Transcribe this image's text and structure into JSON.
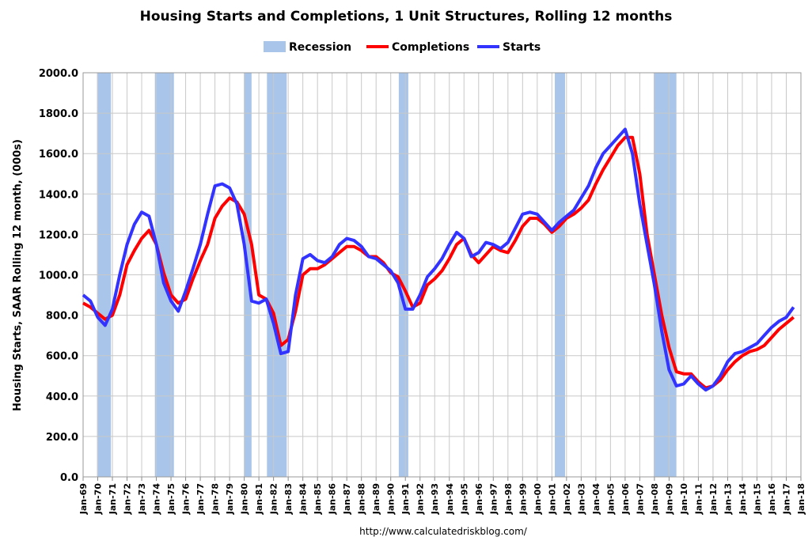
{
  "chart_data": {
    "type": "line",
    "title": "Housing Starts and Completions, 1 Unit Structures, Rolling 12 months",
    "ylabel": "Housing Starts, SAAR Rolling 12 month, (000s)",
    "source": "http://www.calculatedriskblog.com/",
    "ylim": [
      0,
      2000
    ],
    "yticks": [
      {
        "value": 0,
        "label": "0.0"
      },
      {
        "value": 200,
        "label": "200.0"
      },
      {
        "value": 400,
        "label": "400.0"
      },
      {
        "value": 600,
        "label": "600.0"
      },
      {
        "value": 800,
        "label": "800.0"
      },
      {
        "value": 1000,
        "label": "1000.0"
      },
      {
        "value": 1200,
        "label": "1200.0"
      },
      {
        "value": 1400,
        "label": "1400.0"
      },
      {
        "value": 1600,
        "label": "1600.0"
      },
      {
        "value": 1800,
        "label": "1800.0"
      },
      {
        "value": 2000,
        "label": "2000.0"
      }
    ],
    "xlim": [
      1969,
      2018
    ],
    "xticks": [
      {
        "value": 1969,
        "label": "Jan-69"
      },
      {
        "value": 1970,
        "label": "Jan-70"
      },
      {
        "value": 1971,
        "label": "Jan-71"
      },
      {
        "value": 1972,
        "label": "Jan-72"
      },
      {
        "value": 1973,
        "label": "Jan-73"
      },
      {
        "value": 1974,
        "label": "Jan-74"
      },
      {
        "value": 1975,
        "label": "Jan-75"
      },
      {
        "value": 1976,
        "label": "Jan-76"
      },
      {
        "value": 1977,
        "label": "Jan-77"
      },
      {
        "value": 1978,
        "label": "Jan-78"
      },
      {
        "value": 1979,
        "label": "Jan-79"
      },
      {
        "value": 1980,
        "label": "Jan-80"
      },
      {
        "value": 1981,
        "label": "Jan-81"
      },
      {
        "value": 1982,
        "label": "Jan-82"
      },
      {
        "value": 1983,
        "label": "Jan-83"
      },
      {
        "value": 1984,
        "label": "Jan-84"
      },
      {
        "value": 1985,
        "label": "Jan-85"
      },
      {
        "value": 1986,
        "label": "Jan-86"
      },
      {
        "value": 1987,
        "label": "Jan-87"
      },
      {
        "value": 1988,
        "label": "Jan-88"
      },
      {
        "value": 1989,
        "label": "Jan-89"
      },
      {
        "value": 1990,
        "label": "Jan-90"
      },
      {
        "value": 1991,
        "label": "Jan-91"
      },
      {
        "value": 1992,
        "label": "Jan-92"
      },
      {
        "value": 1993,
        "label": "Jan-93"
      },
      {
        "value": 1994,
        "label": "Jan-94"
      },
      {
        "value": 1995,
        "label": "Jan-95"
      },
      {
        "value": 1996,
        "label": "Jan-96"
      },
      {
        "value": 1997,
        "label": "Jan-97"
      },
      {
        "value": 1998,
        "label": "Jan-98"
      },
      {
        "value": 1999,
        "label": "Jan-99"
      },
      {
        "value": 2000,
        "label": "Jan-00"
      },
      {
        "value": 2001,
        "label": "Jan-01"
      },
      {
        "value": 2002,
        "label": "Jan-02"
      },
      {
        "value": 2003,
        "label": "Jan-03"
      },
      {
        "value": 2004,
        "label": "Jan-04"
      },
      {
        "value": 2005,
        "label": "Jan-05"
      },
      {
        "value": 2006,
        "label": "Jan-06"
      },
      {
        "value": 2007,
        "label": "Jan-07"
      },
      {
        "value": 2008,
        "label": "Jan-08"
      },
      {
        "value": 2009,
        "label": "Jan-09"
      },
      {
        "value": 2010,
        "label": "Jan-10"
      },
      {
        "value": 2011,
        "label": "Jan-11"
      },
      {
        "value": 2012,
        "label": "Jan-12"
      },
      {
        "value": 2013,
        "label": "Jan-13"
      },
      {
        "value": 2014,
        "label": "Jan-14"
      },
      {
        "value": 2015,
        "label": "Jan-15"
      },
      {
        "value": 2016,
        "label": "Jan-16"
      },
      {
        "value": 2017,
        "label": "Jan-17"
      },
      {
        "value": 2018,
        "label": "Jan-18"
      }
    ],
    "grid": true,
    "legend": "top",
    "recessions": {
      "name": "Recession",
      "color": "#a9c6ea",
      "periods": [
        [
          1969.95,
          1970.9
        ],
        [
          1973.9,
          1975.2
        ],
        [
          1980.0,
          1980.5
        ],
        [
          1981.55,
          1982.9
        ],
        [
          1990.55,
          1991.2
        ],
        [
          2001.2,
          2001.9
        ],
        [
          2007.95,
          2009.5
        ]
      ]
    },
    "x": [
      1969,
      1969.5,
      1970,
      1970.5,
      1971,
      1971.5,
      1972,
      1972.5,
      1973,
      1973.5,
      1974,
      1974.5,
      1975,
      1975.5,
      1976,
      1976.5,
      1977,
      1977.5,
      1978,
      1978.5,
      1979,
      1979.5,
      1980,
      1980.5,
      1981,
      1981.5,
      1982,
      1982.5,
      1983,
      1983.5,
      1984,
      1984.5,
      1985,
      1985.5,
      1986,
      1986.5,
      1987,
      1987.5,
      1988,
      1988.5,
      1989,
      1989.5,
      1990,
      1990.5,
      1991,
      1991.5,
      1992,
      1992.5,
      1993,
      1993.5,
      1994,
      1994.5,
      1995,
      1995.5,
      1996,
      1996.5,
      1997,
      1997.5,
      1998,
      1998.5,
      1999,
      1999.5,
      2000,
      2000.5,
      2001,
      2001.5,
      2002,
      2002.5,
      2003,
      2003.5,
      2004,
      2004.5,
      2005,
      2005.5,
      2006,
      2006.5,
      2007,
      2007.5,
      2008,
      2008.5,
      2009,
      2009.5,
      2010,
      2010.5,
      2011,
      2011.5,
      2012,
      2012.5,
      2013,
      2013.5,
      2014,
      2014.5,
      2015,
      2015.5,
      2016,
      2016.5,
      2017,
      2017.5
    ],
    "series": [
      {
        "name": "Completions",
        "color": "#ff0000",
        "values": [
          860,
          840,
          810,
          780,
          800,
          900,
          1050,
          1120,
          1180,
          1220,
          1150,
          1010,
          900,
          860,
          880,
          980,
          1070,
          1150,
          1280,
          1340,
          1380,
          1360,
          1300,
          1150,
          900,
          880,
          810,
          650,
          680,
          820,
          1000,
          1030,
          1030,
          1050,
          1080,
          1110,
          1140,
          1140,
          1120,
          1090,
          1090,
          1060,
          1010,
          990,
          920,
          840,
          860,
          950,
          980,
          1020,
          1080,
          1150,
          1180,
          1100,
          1060,
          1100,
          1140,
          1120,
          1110,
          1170,
          1240,
          1280,
          1280,
          1250,
          1210,
          1240,
          1280,
          1300,
          1330,
          1370,
          1450,
          1520,
          1580,
          1640,
          1680,
          1680,
          1500,
          1200,
          1000,
          800,
          640,
          520,
          510,
          510,
          470,
          440,
          450,
          480,
          530,
          570,
          600,
          620,
          630,
          650,
          690,
          730,
          760,
          790
        ]
      },
      {
        "name": "Starts",
        "color": "#3333ff",
        "values": [
          900,
          870,
          790,
          750,
          830,
          1000,
          1150,
          1250,
          1310,
          1290,
          1150,
          960,
          870,
          820,
          920,
          1030,
          1150,
          1300,
          1440,
          1450,
          1430,
          1350,
          1150,
          870,
          860,
          880,
          760,
          610,
          620,
          900,
          1080,
          1100,
          1070,
          1060,
          1090,
          1150,
          1180,
          1170,
          1140,
          1090,
          1080,
          1050,
          1020,
          960,
          830,
          830,
          900,
          990,
          1030,
          1080,
          1150,
          1210,
          1180,
          1090,
          1110,
          1160,
          1150,
          1130,
          1160,
          1230,
          1300,
          1310,
          1300,
          1260,
          1220,
          1260,
          1290,
          1320,
          1380,
          1440,
          1530,
          1600,
          1640,
          1680,
          1720,
          1600,
          1350,
          1150,
          950,
          720,
          530,
          450,
          460,
          500,
          460,
          430,
          450,
          500,
          570,
          610,
          620,
          640,
          660,
          700,
          740,
          770,
          790,
          840
        ]
      }
    ]
  }
}
